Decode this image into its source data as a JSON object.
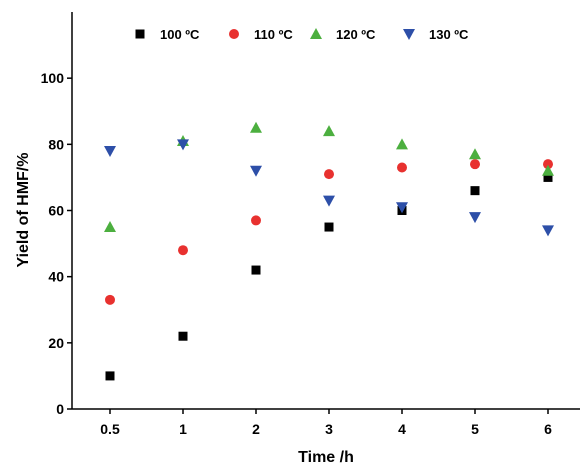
{
  "chart_data": {
    "type": "scatter",
    "xlabel": "Time /h",
    "ylabel": "Yield of HMF/%",
    "categories": [
      "0.5",
      "1",
      "2",
      "3",
      "4",
      "5",
      "6"
    ],
    "x": [
      0.5,
      1,
      2,
      3,
      4,
      5,
      6
    ],
    "ylim": [
      0,
      120
    ],
    "yticks": [
      0,
      20,
      40,
      60,
      80,
      100
    ],
    "yticklabels": [
      "0",
      "20",
      "40",
      "60",
      "80",
      "100"
    ],
    "grid": false,
    "legend_position": "top",
    "series": [
      {
        "name": "100 ºC",
        "marker": "square",
        "color": "#000000",
        "values": [
          10,
          22,
          42,
          55,
          60,
          66,
          70
        ]
      },
      {
        "name": "110 ºC",
        "marker": "circle",
        "color": "#e8312f",
        "values": [
          33,
          48,
          57,
          71,
          73,
          74,
          74
        ]
      },
      {
        "name": "120 ºC",
        "marker": "triangle-up",
        "color": "#4caf3f",
        "values": [
          55,
          81,
          85,
          84,
          80,
          77,
          72
        ]
      },
      {
        "name": "130 ºC",
        "marker": "triangle-down",
        "color": "#2d4fa8",
        "values": [
          78,
          80,
          72,
          63,
          61,
          58,
          54
        ]
      }
    ]
  }
}
